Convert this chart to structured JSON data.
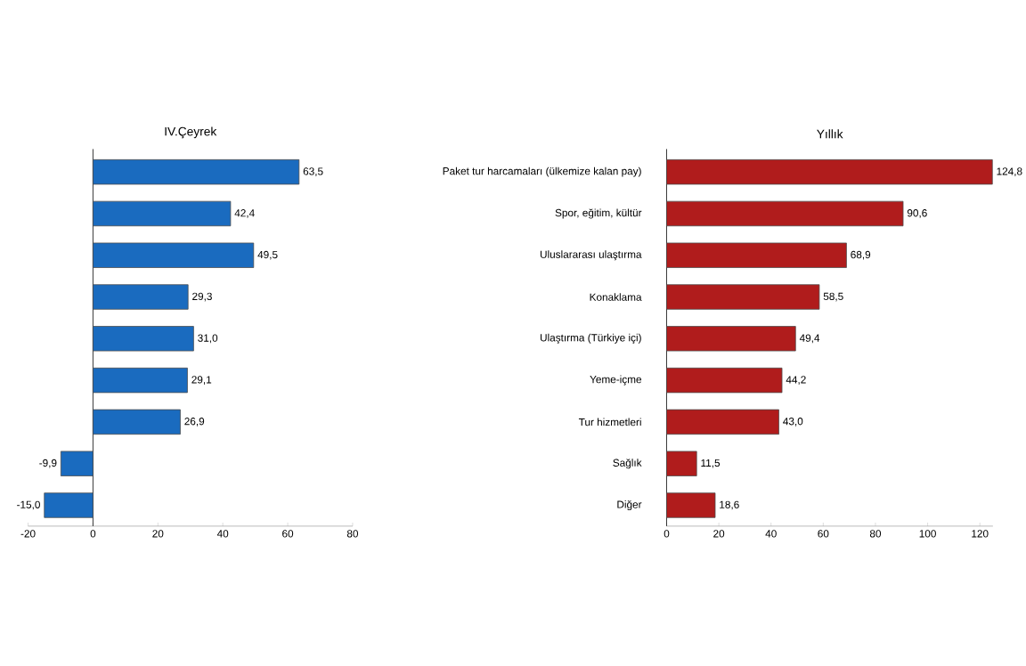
{
  "chart_data": [
    {
      "type": "bar",
      "orientation": "horizontal",
      "title": "IV.Çeyrek",
      "categories": [
        null,
        null,
        null,
        null,
        null,
        null,
        null,
        null,
        null
      ],
      "color": "#1a6bbf",
      "values": [
        63.5,
        42.4,
        49.5,
        29.3,
        31.0,
        29.1,
        26.9,
        -9.9,
        -15.0
      ],
      "value_labels": [
        "63,5",
        "42,4",
        "49,5",
        "29,3",
        "31,0",
        "29,1",
        "26,9",
        "-9,9",
        "-15,0"
      ],
      "xlim": [
        -20,
        80
      ],
      "xticks": [
        -20,
        0,
        20,
        40,
        60,
        80
      ]
    },
    {
      "type": "bar",
      "orientation": "horizontal",
      "title": "Yıllık",
      "categories": [
        "Paket tur harcamaları (ülkemize kalan pay)",
        "Spor, eğitim, kültür",
        "Uluslararası ulaştırma",
        "Konaklama",
        "Ulaştırma (Türkiye içi)",
        "Yeme-içme",
        "Tur hizmetleri",
        "Sağlık",
        "Diğer"
      ],
      "color": "#b01c1c",
      "values": [
        124.8,
        90.6,
        68.9,
        58.5,
        49.4,
        44.2,
        43.0,
        11.5,
        18.6
      ],
      "value_labels": [
        "124,8",
        "90,6",
        "68,9",
        "58,5",
        "49,4",
        "44,2",
        "43,0",
        "11,5",
        "18,6"
      ],
      "xlim": [
        0,
        125
      ],
      "xticks": [
        0,
        20,
        40,
        60,
        80,
        100,
        120
      ]
    }
  ]
}
